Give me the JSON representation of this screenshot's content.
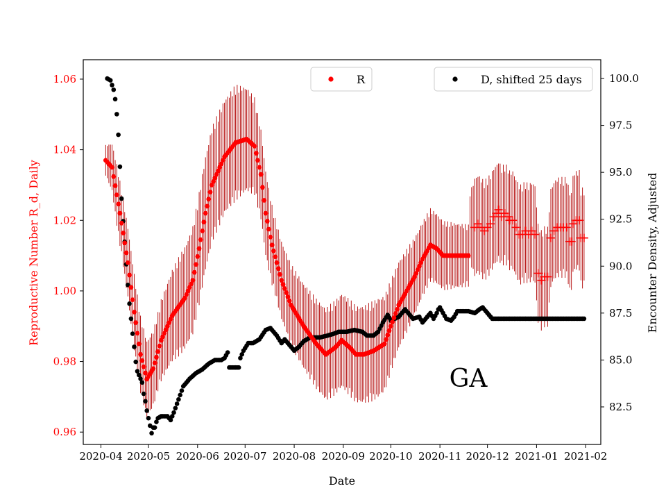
{
  "chart_data": {
    "type": "scatter",
    "annotation": "GA",
    "xlabel": "Date",
    "ylabel_left": "Reproductive Number R_d, Daily",
    "ylabel_right": "Encounter Density, Adjusted",
    "x_ticks": [
      "2020-04",
      "2020-05",
      "2020-06",
      "2020-07",
      "2020-08",
      "2020-09",
      "2020-10",
      "2020-11",
      "2020-12",
      "2021-01",
      "2021-02"
    ],
    "ylim_left": [
      0.9565,
      1.0655
    ],
    "yticks_left": [
      "0.96",
      "0.98",
      "1.00",
      "1.02",
      "1.04",
      "1.06"
    ],
    "ylim_right": [
      80.5,
      101.0
    ],
    "yticks_right": [
      "82.5",
      "85.0",
      "87.5",
      "90.0",
      "92.5",
      "95.0",
      "97.5",
      "100.0"
    ],
    "colors": {
      "R": "#ff0000",
      "R_err": "#b00000",
      "D": "#000000",
      "left_axis": "#ff0000"
    },
    "legend_R": {
      "label": "R",
      "placement": "upper-center"
    },
    "legend_D": {
      "label": "D, shifted 25 days",
      "placement": "upper-right"
    },
    "series_R": {
      "name": "R",
      "day_range": [
        3,
        305
      ],
      "dot_until_day": 232,
      "keyframes": [
        [
          3,
          1.037
        ],
        [
          7,
          1.035
        ],
        [
          12,
          1.022
        ],
        [
          17,
          1.008
        ],
        [
          21,
          0.994
        ],
        [
          25,
          0.982
        ],
        [
          29,
          0.975
        ],
        [
          33,
          0.978
        ],
        [
          38,
          0.986
        ],
        [
          45,
          0.993
        ],
        [
          53,
          0.998
        ],
        [
          58,
          1.003
        ],
        [
          62,
          1.012
        ],
        [
          66,
          1.022
        ],
        [
          70,
          1.03
        ],
        [
          78,
          1.038
        ],
        [
          85,
          1.042
        ],
        [
          92,
          1.043
        ],
        [
          97,
          1.041
        ],
        [
          101,
          1.033
        ],
        [
          104,
          1.022
        ],
        [
          108,
          1.013
        ],
        [
          114,
          1.003
        ],
        [
          120,
          0.996
        ],
        [
          128,
          0.99
        ],
        [
          136,
          0.985
        ],
        [
          142,
          0.982
        ],
        [
          148,
          0.984
        ],
        [
          152,
          0.986
        ],
        [
          157,
          0.984
        ],
        [
          161,
          0.982
        ],
        [
          166,
          0.982
        ],
        [
          172,
          0.983
        ],
        [
          179,
          0.985
        ],
        [
          183,
          0.99
        ],
        [
          188,
          0.996
        ],
        [
          193,
          1.0
        ],
        [
          198,
          1.004
        ],
        [
          203,
          1.009
        ],
        [
          208,
          1.013
        ],
        [
          212,
          1.012
        ],
        [
          216,
          1.01
        ],
        [
          222,
          1.01
        ],
        [
          232,
          1.01
        ]
      ],
      "scatter": [
        [
          236,
          1.018
        ],
        [
          238,
          1.019
        ],
        [
          240,
          1.018
        ],
        [
          242,
          1.017
        ],
        [
          244,
          1.018
        ],
        [
          246,
          1.019
        ],
        [
          248,
          1.021
        ],
        [
          250,
          1.022
        ],
        [
          251,
          1.023
        ],
        [
          253,
          1.021
        ],
        [
          255,
          1.022
        ],
        [
          257,
          1.021
        ],
        [
          258,
          1.02
        ],
        [
          260,
          1.02
        ],
        [
          262,
          1.018
        ],
        [
          264,
          1.016
        ],
        [
          266,
          1.016
        ],
        [
          268,
          1.017
        ],
        [
          270,
          1.016
        ],
        [
          272,
          1.017
        ],
        [
          274,
          1.016
        ],
        [
          276,
          1.005
        ],
        [
          278,
          1.003
        ],
        [
          280,
          1.004
        ],
        [
          282,
          1.004
        ],
        [
          284,
          1.015
        ],
        [
          286,
          1.017
        ],
        [
          288,
          1.018
        ],
        [
          290,
          1.018
        ],
        [
          292,
          1.018
        ],
        [
          294,
          1.018
        ],
        [
          296,
          1.014
        ],
        [
          297,
          1.014
        ],
        [
          298,
          1.019
        ],
        [
          300,
          1.02
        ],
        [
          302,
          1.02
        ],
        [
          303,
          1.015
        ],
        [
          305,
          1.015
        ]
      ],
      "error_halfwidth": [
        [
          3,
          0.004
        ],
        [
          10,
          0.008
        ],
        [
          20,
          0.01
        ],
        [
          35,
          0.01
        ],
        [
          50,
          0.013
        ],
        [
          65,
          0.015
        ],
        [
          85,
          0.015
        ],
        [
          95,
          0.013
        ],
        [
          110,
          0.01
        ],
        [
          140,
          0.012
        ],
        [
          175,
          0.013
        ],
        [
          200,
          0.01
        ],
        [
          232,
          0.008
        ],
        [
          236,
          0.013
        ],
        [
          305,
          0.013
        ]
      ]
    },
    "series_D": {
      "name": "D, shifted 25 days",
      "keyframes": [
        [
          4,
          100.0
        ],
        [
          6,
          99.9
        ],
        [
          8,
          99.4
        ],
        [
          9,
          98.9
        ],
        [
          10,
          98.1
        ],
        [
          11,
          97.0
        ],
        [
          12,
          95.3
        ],
        [
          13,
          93.6
        ],
        [
          14,
          92.4
        ],
        [
          15,
          91.3
        ],
        [
          16,
          90.1
        ],
        [
          17,
          89.0
        ],
        [
          18,
          88.0
        ],
        [
          19,
          87.2
        ],
        [
          20,
          86.4
        ],
        [
          21,
          85.7
        ],
        [
          22,
          84.9
        ],
        [
          23,
          84.4
        ],
        [
          24,
          84.2
        ],
        [
          25,
          84.0
        ],
        [
          26,
          83.8
        ],
        [
          27,
          83.2
        ],
        [
          28,
          82.8
        ],
        [
          29,
          82.3
        ],
        [
          30,
          81.9
        ],
        [
          31,
          81.5
        ],
        [
          32,
          81.1
        ],
        [
          33,
          81.4
        ],
        [
          34,
          81.4
        ],
        [
          35,
          81.7
        ],
        [
          36,
          81.9
        ],
        [
          38,
          82.0
        ],
        [
          42,
          82.0
        ],
        [
          44,
          81.8
        ],
        [
          46,
          82.2
        ],
        [
          49,
          82.9
        ],
        [
          52,
          83.6
        ],
        [
          56,
          84.0
        ],
        [
          60,
          84.3
        ],
        [
          64,
          84.5
        ],
        [
          68,
          84.8
        ],
        [
          72,
          85.0
        ],
        [
          76,
          85.0
        ],
        [
          78,
          85.1
        ],
        [
          80,
          85.4
        ],
        [
          81,
          84.6
        ],
        [
          85,
          84.6
        ],
        [
          87,
          84.6
        ],
        [
          88,
          85.1
        ],
        [
          90,
          85.5
        ],
        [
          93,
          85.9
        ],
        [
          96,
          85.9
        ],
        [
          100,
          86.1
        ],
        [
          104,
          86.6
        ],
        [
          107,
          86.7
        ],
        [
          111,
          86.3
        ],
        [
          114,
          85.9
        ],
        [
          116,
          86.1
        ],
        [
          119,
          85.8
        ],
        [
          122,
          85.5
        ],
        [
          125,
          85.7
        ],
        [
          128,
          86.0
        ],
        [
          132,
          86.2
        ],
        [
          138,
          86.2
        ],
        [
          143,
          86.3
        ],
        [
          147,
          86.4
        ],
        [
          150,
          86.5
        ],
        [
          155,
          86.5
        ],
        [
          160,
          86.6
        ],
        [
          165,
          86.5
        ],
        [
          168,
          86.3
        ],
        [
          172,
          86.3
        ],
        [
          175,
          86.5
        ],
        [
          178,
          87.0
        ],
        [
          181,
          87.4
        ],
        [
          183,
          87.1
        ],
        [
          188,
          87.3
        ],
        [
          192,
          87.7
        ],
        [
          197,
          87.2
        ],
        [
          201,
          87.3
        ],
        [
          203,
          87.0
        ],
        [
          206,
          87.3
        ],
        [
          208,
          87.5
        ],
        [
          210,
          87.2
        ],
        [
          212,
          87.5
        ],
        [
          213,
          87.7
        ],
        [
          214,
          87.8
        ],
        [
          216,
          87.5
        ],
        [
          218,
          87.2
        ],
        [
          221,
          87.1
        ],
        [
          223,
          87.3
        ],
        [
          225,
          87.6
        ],
        [
          232,
          87.6
        ],
        [
          236,
          87.5
        ],
        [
          239,
          87.7
        ],
        [
          241,
          87.8
        ],
        [
          243,
          87.6
        ],
        [
          245,
          87.4
        ],
        [
          247,
          87.2
        ],
        [
          305,
          87.2
        ]
      ]
    }
  }
}
